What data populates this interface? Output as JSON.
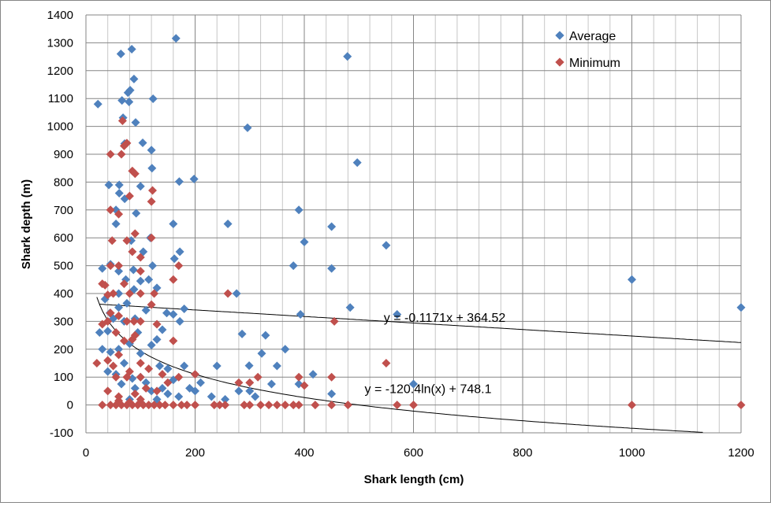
{
  "chart_data": {
    "type": "scatter",
    "title": "",
    "xlabel": "Shark length (cm)",
    "ylabel": "Shark depth (m)",
    "xlim": [
      0,
      1200
    ],
    "ylim": [
      -100,
      1400
    ],
    "x_ticks": [
      "0",
      "200",
      "400",
      "600",
      "800",
      "1000",
      "1200"
    ],
    "y_ticks": [
      "-100",
      "0",
      "100",
      "200",
      "300",
      "400",
      "500",
      "600",
      "700",
      "800",
      "900",
      "1000",
      "1100",
      "1200",
      "1300",
      "1400"
    ],
    "grid": true,
    "legend_position": "top-right",
    "series": [
      {
        "name": "Average",
        "color": "#4f81bd",
        "marker": "diamond",
        "points": [
          [
            22,
            1080
          ],
          [
            165,
            1316
          ],
          [
            64,
            1260
          ],
          [
            84,
            1277
          ],
          [
            88,
            1170
          ],
          [
            66,
            1093
          ],
          [
            79,
            1088
          ],
          [
            77,
            1121
          ],
          [
            81,
            1130
          ],
          [
            123,
            1099
          ],
          [
            91,
            1014
          ],
          [
            68,
            1031
          ],
          [
            104,
            941
          ],
          [
            120,
            915
          ],
          [
            71,
            938
          ],
          [
            121,
            850
          ],
          [
            42,
            790
          ],
          [
            61,
            790
          ],
          [
            61,
            760
          ],
          [
            71,
            740
          ],
          [
            100,
            785
          ],
          [
            198,
            811
          ],
          [
            171,
            802
          ],
          [
            92,
            688
          ],
          [
            55,
            700
          ],
          [
            160,
            650
          ],
          [
            55,
            650
          ],
          [
            83,
            590
          ],
          [
            118,
            600
          ],
          [
            172,
            550
          ],
          [
            45,
            505
          ],
          [
            30,
            490
          ],
          [
            105,
            550
          ],
          [
            122,
            500
          ],
          [
            162,
            525
          ],
          [
            87,
            485
          ],
          [
            148,
            330
          ],
          [
            60,
            480
          ],
          [
            73,
            450
          ],
          [
            100,
            445
          ],
          [
            115,
            450
          ],
          [
            88,
            415
          ],
          [
            130,
            420
          ],
          [
            60,
            400
          ],
          [
            35,
            380
          ],
          [
            75,
            365
          ],
          [
            110,
            340
          ],
          [
            180,
            345
          ],
          [
            60,
            350
          ],
          [
            44,
            330
          ],
          [
            90,
            310
          ],
          [
            140,
            270
          ],
          [
            172,
            300
          ],
          [
            160,
            325
          ],
          [
            50,
            310
          ],
          [
            70,
            300
          ],
          [
            25,
            260
          ],
          [
            40,
            265
          ],
          [
            95,
            260
          ],
          [
            80,
            220
          ],
          [
            120,
            215
          ],
          [
            130,
            235
          ],
          [
            30,
            200
          ],
          [
            45,
            190
          ],
          [
            60,
            200
          ],
          [
            100,
            185
          ],
          [
            135,
            140
          ],
          [
            180,
            140
          ],
          [
            150,
            130
          ],
          [
            70,
            150
          ],
          [
            55,
            110
          ],
          [
            40,
            120
          ],
          [
            85,
            95
          ],
          [
            100,
            100
          ],
          [
            110,
            80
          ],
          [
            90,
            60
          ],
          [
            65,
            75
          ],
          [
            120,
            50
          ],
          [
            150,
            40
          ],
          [
            170,
            30
          ],
          [
            130,
            20
          ],
          [
            200,
            50
          ],
          [
            230,
            30
          ],
          [
            240,
            140
          ],
          [
            255,
            20
          ],
          [
            286,
            255
          ],
          [
            329,
            250
          ],
          [
            299,
            141
          ],
          [
            350,
            140
          ],
          [
            365,
            200
          ],
          [
            322,
            185
          ],
          [
            296,
            995
          ],
          [
            479,
            1251
          ],
          [
            497,
            870
          ],
          [
            390,
            700
          ],
          [
            400,
            585
          ],
          [
            450,
            640
          ],
          [
            450,
            490
          ],
          [
            550,
            573
          ],
          [
            484,
            350
          ],
          [
            380,
            500
          ],
          [
            393,
            325
          ],
          [
            260,
            650
          ],
          [
            276,
            400
          ],
          [
            570,
            325
          ],
          [
            600,
            75
          ],
          [
            1000,
            450
          ],
          [
            1200,
            350
          ],
          [
            416,
            110
          ],
          [
            450,
            40
          ],
          [
            390,
            75
          ],
          [
            300,
            50
          ],
          [
            280,
            50
          ],
          [
            340,
            75
          ],
          [
            310,
            30
          ],
          [
            80,
            20
          ],
          [
            100,
            10
          ],
          [
            140,
            60
          ],
          [
            160,
            90
          ],
          [
            190,
            60
          ],
          [
            210,
            80
          ]
        ]
      },
      {
        "name": "Minimum",
        "color": "#c0504d",
        "marker": "diamond",
        "points": [
          [
            67,
            1020
          ],
          [
            75,
            940
          ],
          [
            70,
            930
          ],
          [
            45,
            900
          ],
          [
            65,
            900
          ],
          [
            85,
            840
          ],
          [
            90,
            830
          ],
          [
            122,
            770
          ],
          [
            120,
            730
          ],
          [
            80,
            750
          ],
          [
            45,
            700
          ],
          [
            60,
            685
          ],
          [
            90,
            615
          ],
          [
            48,
            590
          ],
          [
            120,
            600
          ],
          [
            75,
            590
          ],
          [
            85,
            550
          ],
          [
            100,
            530
          ],
          [
            45,
            500
          ],
          [
            60,
            500
          ],
          [
            100,
            480
          ],
          [
            170,
            500
          ],
          [
            160,
            450
          ],
          [
            30,
            435
          ],
          [
            35,
            430
          ],
          [
            70,
            435
          ],
          [
            50,
            400
          ],
          [
            40,
            395
          ],
          [
            80,
            400
          ],
          [
            100,
            400
          ],
          [
            125,
            400
          ],
          [
            120,
            360
          ],
          [
            260,
            400
          ],
          [
            40,
            300
          ],
          [
            30,
            290
          ],
          [
            45,
            330
          ],
          [
            60,
            320
          ],
          [
            88,
            300
          ],
          [
            75,
            300
          ],
          [
            100,
            300
          ],
          [
            90,
            250
          ],
          [
            130,
            290
          ],
          [
            55,
            260
          ],
          [
            70,
            230
          ],
          [
            85,
            235
          ],
          [
            160,
            230
          ],
          [
            20,
            150
          ],
          [
            40,
            160
          ],
          [
            50,
            140
          ],
          [
            60,
            180
          ],
          [
            80,
            120
          ],
          [
            100,
            150
          ],
          [
            115,
            130
          ],
          [
            55,
            100
          ],
          [
            75,
            100
          ],
          [
            100,
            100
          ],
          [
            140,
            110
          ],
          [
            170,
            100
          ],
          [
            150,
            80
          ],
          [
            40,
            50
          ],
          [
            60,
            30
          ],
          [
            90,
            40
          ],
          [
            110,
            60
          ],
          [
            130,
            50
          ],
          [
            200,
            110
          ],
          [
            300,
            80
          ],
          [
            315,
            100
          ],
          [
            390,
            100
          ],
          [
            400,
            70
          ],
          [
            455,
            300
          ],
          [
            550,
            150
          ],
          [
            450,
            100
          ],
          [
            280,
            80
          ],
          [
            30,
            0
          ],
          [
            45,
            0
          ],
          [
            55,
            0
          ],
          [
            65,
            0
          ],
          [
            75,
            0
          ],
          [
            85,
            0
          ],
          [
            95,
            0
          ],
          [
            105,
            0
          ],
          [
            115,
            0
          ],
          [
            125,
            0
          ],
          [
            135,
            0
          ],
          [
            145,
            0
          ],
          [
            160,
            0
          ],
          [
            175,
            0
          ],
          [
            185,
            0
          ],
          [
            200,
            0
          ],
          [
            235,
            0
          ],
          [
            245,
            0
          ],
          [
            255,
            0
          ],
          [
            290,
            0
          ],
          [
            300,
            0
          ],
          [
            320,
            0
          ],
          [
            335,
            0
          ],
          [
            350,
            0
          ],
          [
            365,
            0
          ],
          [
            380,
            0
          ],
          [
            390,
            0
          ],
          [
            420,
            0
          ],
          [
            450,
            0
          ],
          [
            480,
            0
          ],
          [
            570,
            0
          ],
          [
            600,
            0
          ],
          [
            1000,
            0
          ],
          [
            1200,
            0
          ],
          [
            60,
            15
          ],
          [
            80,
            10
          ],
          [
            100,
            20
          ]
        ]
      }
    ],
    "trendlines": [
      {
        "type": "linear",
        "slope": -0.1171,
        "intercept": 364.52,
        "x_range": [
          25,
          1200
        ],
        "label": "y = -0.1171x + 364.52",
        "label_at": [
          700,
          315
        ]
      },
      {
        "type": "log",
        "a": -120.4,
        "b": 748.1,
        "x_range": [
          20,
          1130
        ],
        "label": "y = -120.4ln(x) + 748.1",
        "label_at": [
          665,
          60
        ]
      }
    ]
  }
}
